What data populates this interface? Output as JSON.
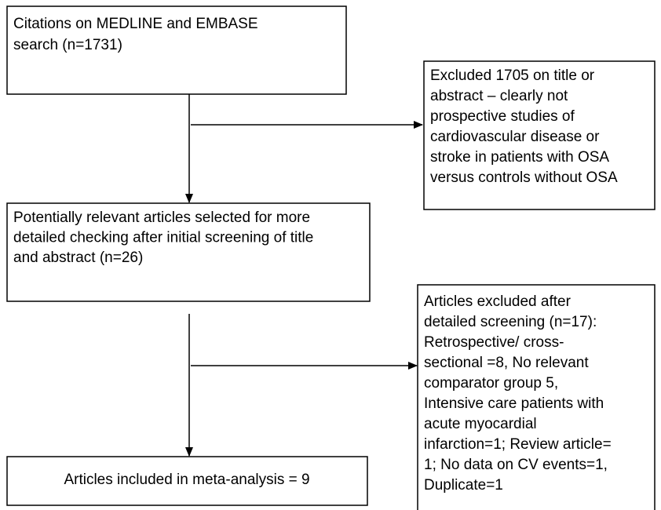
{
  "boxes": [
    {
      "lines": [
        "Citations on MEDLINE and EMBASE",
        "search (n=1731)"
      ]
    },
    {
      "lines": [
        "Excluded 1705 on title or",
        "abstract – clearly not",
        "prospective studies of",
        "cardiovascular disease or",
        "stroke in patients with OSA",
        "versus controls without OSA"
      ]
    },
    {
      "lines": [
        "Potentially relevant articles selected for more",
        "detailed checking after initial screening of title",
        "and abstract (n=26)"
      ]
    },
    {
      "lines": [
        "Articles included in meta-analysis = 9"
      ]
    },
    {
      "lines": [
        "Articles excluded after",
        "detailed screening (n=17):",
        "Retrospective/ cross-",
        "sectional =8, No relevant",
        "comparator group 5,",
        "Intensive care patients with",
        "acute myocardial",
        "infarction=1; Review article=",
        "1; No data on CV events=1,",
        "Duplicate=1"
      ]
    }
  ]
}
